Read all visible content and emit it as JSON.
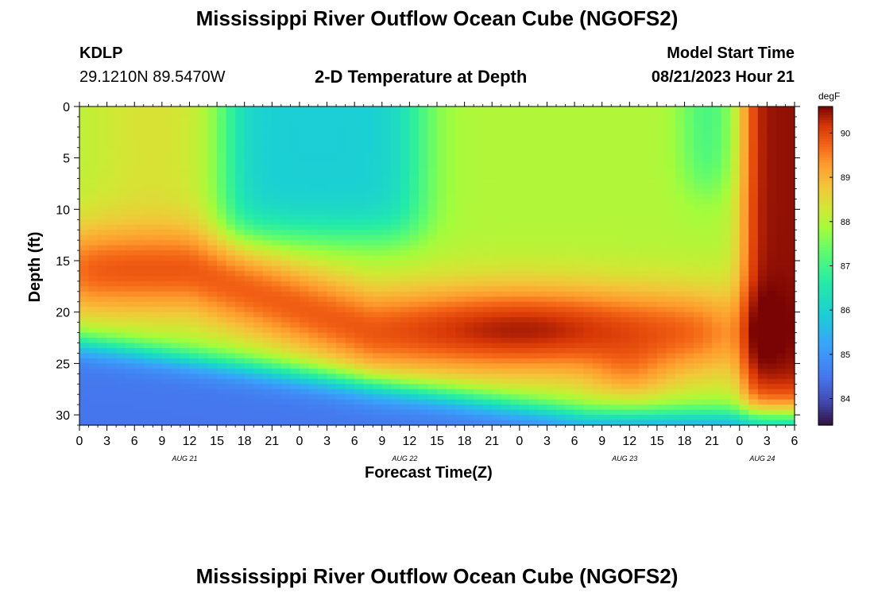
{
  "page": {
    "title": "Mississippi River Outflow Ocean Cube (NGOFS2)",
    "bottom_title": "Mississippi River Outflow Ocean Cube (NGOFS2)"
  },
  "station": {
    "id": "KDLP",
    "coords": "29.1210N  89.5470W"
  },
  "model": {
    "label": "Model Start Time",
    "time": "08/21/2023 Hour 21"
  },
  "chart_data": {
    "type": "heatmap",
    "title": "2-D Temperature at Depth",
    "xlabel": "Forecast Time(Z)",
    "ylabel": "Depth (ft)",
    "x_hours_range": [
      0,
      78
    ],
    "x_tick_labels": [
      "0",
      "3",
      "6",
      "9",
      "12",
      "15",
      "18",
      "21",
      "0",
      "3",
      "6",
      "9",
      "12",
      "15",
      "18",
      "21",
      "0",
      "3",
      "6",
      "9",
      "12",
      "15",
      "18",
      "21",
      "0",
      "3",
      "6"
    ],
    "date_labels": [
      {
        "label": "AUG 21",
        "hour": 12
      },
      {
        "label": "AUG 22",
        "hour": 36
      },
      {
        "label": "AUG 23",
        "hour": 60
      },
      {
        "label": "AUG 24",
        "hour": 75
      }
    ],
    "y_range": [
      0,
      31
    ],
    "y_ticks": [
      0,
      5,
      10,
      15,
      20,
      25,
      30
    ],
    "y_inverted": true,
    "colorbar": {
      "unit": "degF",
      "min": 83.4,
      "max": 90.6,
      "ticks": [
        84,
        85,
        86,
        87,
        88,
        89,
        90
      ],
      "colormap": "turbo"
    },
    "grid": false,
    "resolution": {
      "dx_hours": 1,
      "dy_ft": 0.5
    },
    "values_note": "",
    "values": null
  }
}
